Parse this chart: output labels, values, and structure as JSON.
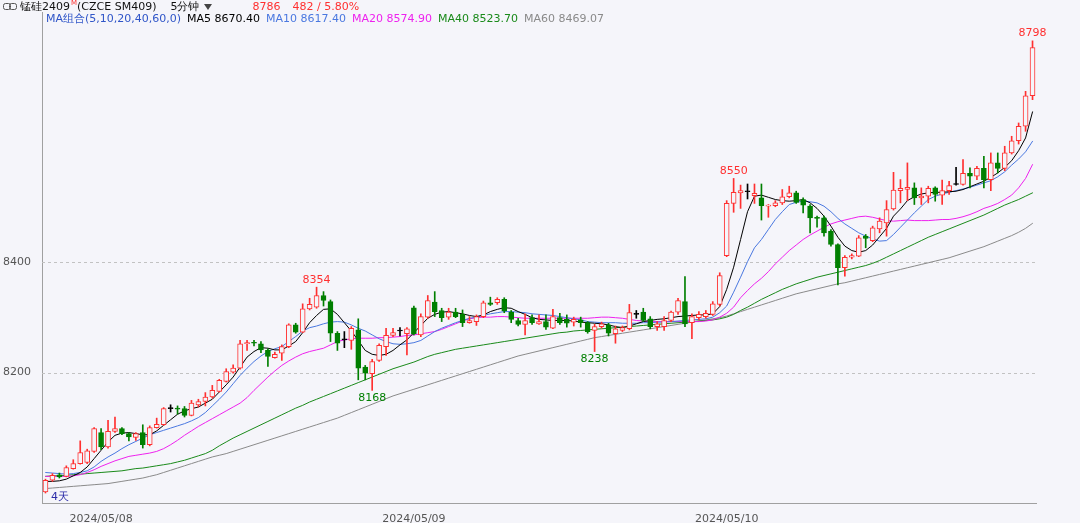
{
  "chart_data": {
    "type": "candlestick",
    "title": "锰硅2409$^{M}$(CZCE SM409)",
    "subtitle": "5分钟",
    "legend_title": "MA组合(5,10,20,40,60,0)",
    "categories": [
      null,
      null,
      null,
      null,
      null,
      null,
      null,
      null,
      "2024/05/08",
      null,
      null,
      null,
      null,
      null,
      null,
      null,
      null,
      null,
      null,
      null,
      null,
      null,
      null,
      null,
      null,
      null,
      null,
      null,
      null,
      null,
      null,
      null,
      null,
      null,
      null,
      null,
      null,
      null,
      null,
      null,
      null,
      null,
      null,
      null,
      null,
      null,
      null,
      null,
      null,
      null,
      null,
      null,
      null,
      "2024/05/09",
      null,
      null,
      null,
      null,
      null,
      null,
      null,
      null,
      null,
      null,
      null,
      null,
      null,
      null,
      null,
      null,
      null,
      null,
      null,
      null,
      null,
      null,
      null,
      null,
      null,
      null,
      null,
      null,
      null,
      null,
      null,
      null,
      null,
      null,
      null,
      null,
      null,
      null,
      null,
      null,
      null,
      null,
      null,
      null,
      "2024/05/10",
      null,
      null,
      null,
      null,
      null,
      null,
      null,
      null,
      null,
      null,
      null,
      null,
      null,
      null,
      null,
      null,
      null,
      null,
      null,
      null,
      null,
      null,
      null,
      null,
      null,
      null,
      null,
      null,
      null,
      null,
      null,
      null,
      null,
      null,
      null,
      null,
      null,
      null,
      null,
      null,
      null,
      null,
      null,
      null
    ],
    "ohlc": [
      [
        7985,
        8008,
        7983,
        8006
      ],
      [
        8006,
        8018,
        8004,
        8015
      ],
      [
        8016,
        8019,
        8010,
        8012
      ],
      [
        8013,
        8032,
        8012,
        8029
      ],
      [
        8027,
        8043,
        8026,
        8036
      ],
      [
        8036,
        8077,
        8035,
        8056
      ],
      [
        8038,
        8062,
        8036,
        8059
      ],
      [
        8058,
        8101,
        8056,
        8099
      ],
      [
        8092,
        8099,
        8061,
        8066
      ],
      [
        8066,
        8114,
        8064,
        8094
      ],
      [
        8094,
        8120,
        8092,
        8099
      ],
      [
        8099,
        8101,
        8088,
        8090
      ],
      [
        8090,
        8092,
        8077,
        8084
      ],
      [
        8083,
        8092,
        8078,
        8090
      ],
      [
        8092,
        8106,
        8064,
        8070
      ],
      [
        8070,
        8104,
        8068,
        8101
      ],
      [
        8101,
        8118,
        8100,
        8107
      ],
      [
        8106,
        8137,
        8105,
        8135
      ],
      [
        8135,
        8142,
        8129,
        8135
      ],
      [
        8136,
        8140,
        8125,
        8134
      ],
      [
        8135,
        8139,
        8120,
        8123
      ],
      [
        8123,
        8150,
        8122,
        8145
      ],
      [
        8142,
        8152,
        8138,
        8148
      ],
      [
        8148,
        8164,
        8140,
        8156
      ],
      [
        8156,
        8177,
        8154,
        8168
      ],
      [
        8166,
        8188,
        8165,
        8186
      ],
      [
        8184,
        8207,
        8183,
        8202
      ],
      [
        8201,
        8214,
        8199,
        8208
      ],
      [
        8208,
        8258,
        8206,
        8252
      ],
      [
        8252,
        8258,
        8240,
        8254
      ],
      [
        8254,
        8258,
        8248,
        8253
      ],
      [
        8252,
        8256,
        8236,
        8241
      ],
      [
        8240,
        8243,
        8211,
        8229
      ],
      [
        8227,
        8237,
        8226,
        8233
      ],
      [
        8235,
        8250,
        8222,
        8247
      ],
      [
        8247,
        8288,
        8245,
        8286
      ],
      [
        8286,
        8289,
        8271,
        8273
      ],
      [
        8273,
        8324,
        8272,
        8315
      ],
      [
        8315,
        8334,
        8313,
        8323
      ],
      [
        8318,
        8354,
        8316,
        8339
      ],
      [
        8339,
        8346,
        8320,
        8330
      ],
      [
        8328,
        8331,
        8256,
        8271
      ],
      [
        8271,
        8274,
        8240,
        8253
      ],
      [
        8259,
        8274,
        8245,
        8259
      ],
      [
        8258,
        8283,
        8242,
        8280
      ],
      [
        8277,
        8297,
        8187,
        8208
      ],
      [
        8210,
        8213,
        8187,
        8199
      ],
      [
        8198,
        8224,
        8168,
        8220
      ],
      [
        8222,
        8252,
        8220,
        8249
      ],
      [
        8247,
        8280,
        8231,
        8267
      ],
      [
        8267,
        8280,
        8265,
        8272
      ],
      [
        8275,
        8281,
        8266,
        8275
      ],
      [
        8270,
        8281,
        8232,
        8279
      ],
      [
        8317,
        8320,
        8268,
        8270
      ],
      [
        8268,
        8306,
        8265,
        8301
      ],
      [
        8300,
        8339,
        8298,
        8330
      ],
      [
        8327,
        8346,
        8301,
        8310
      ],
      [
        8312,
        8316,
        8292,
        8299
      ],
      [
        8300,
        8316,
        8296,
        8309
      ],
      [
        8309,
        8316,
        8299,
        8301
      ],
      [
        8305,
        8313,
        8283,
        8290
      ],
      [
        8290,
        8301,
        8289,
        8294
      ],
      [
        8292,
        8304,
        8285,
        8301
      ],
      [
        8301,
        8329,
        8299,
        8326
      ],
      [
        8326,
        8336,
        8321,
        8323
      ],
      [
        8326,
        8335,
        8323,
        8332
      ],
      [
        8332,
        8335,
        8308,
        8311
      ],
      [
        8309,
        8312,
        8290,
        8296
      ],
      [
        8294,
        8298,
        8284,
        8287
      ],
      [
        8287,
        8306,
        8268,
        8294
      ],
      [
        8299,
        8304,
        8287,
        8290
      ],
      [
        8288,
        8304,
        8287,
        8292
      ],
      [
        8292,
        8304,
        8278,
        8282
      ],
      [
        8280,
        8314,
        8279,
        8301
      ],
      [
        8299,
        8307,
        8287,
        8290
      ],
      [
        8296,
        8304,
        8282,
        8289
      ],
      [
        8291,
        8300,
        8284,
        8296
      ],
      [
        8295,
        8300,
        8282,
        8290
      ],
      [
        8290,
        8292,
        8271,
        8274
      ],
      [
        8276,
        8287,
        8238,
        8283
      ],
      [
        8283,
        8291,
        8280,
        8288
      ],
      [
        8286,
        8289,
        8266,
        8271
      ],
      [
        8270,
        8284,
        8253,
        8279
      ],
      [
        8276,
        8284,
        8274,
        8281
      ],
      [
        8279,
        8323,
        8277,
        8308
      ],
      [
        8305,
        8312,
        8298,
        8305
      ],
      [
        8309,
        8316,
        8292,
        8294
      ],
      [
        8297,
        8301,
        8279,
        8283
      ],
      [
        8283,
        8292,
        8276,
        8288
      ],
      [
        8283,
        8301,
        8276,
        8294
      ],
      [
        8294,
        8311,
        8292,
        8309
      ],
      [
        8309,
        8334,
        8305,
        8330
      ],
      [
        8328,
        8373,
        8283,
        8288
      ],
      [
        8290,
        8306,
        8261,
        8301
      ],
      [
        8299,
        8310,
        8295,
        8305
      ],
      [
        8301,
        8312,
        8298,
        8307
      ],
      [
        8305,
        8328,
        8303,
        8324
      ],
      [
        8323,
        8380,
        8320,
        8375
      ],
      [
        8411,
        8510,
        8409,
        8505
      ],
      [
        8505,
        8550,
        8489,
        8525
      ],
      [
        8524,
        8538,
        8496,
        8528
      ],
      [
        8526,
        8540,
        8513,
        8526
      ],
      [
        8519,
        8540,
        8505,
        8523
      ],
      [
        8515,
        8540,
        8475,
        8501
      ],
      [
        8500,
        8503,
        8480,
        8502
      ],
      [
        8501,
        8510,
        8499,
        8506
      ],
      [
        8506,
        8530,
        8503,
        8517
      ],
      [
        8517,
        8536,
        8515,
        8524
      ],
      [
        8524,
        8527,
        8505,
        8507
      ],
      [
        8512,
        8515,
        8488,
        8502
      ],
      [
        8500,
        8503,
        8452,
        8479
      ],
      [
        8480,
        8482,
        8462,
        8478
      ],
      [
        8479,
        8482,
        8446,
        8452
      ],
      [
        8455,
        8458,
        8428,
        8431
      ],
      [
        8431,
        8432,
        8358,
        8389
      ],
      [
        8389,
        8411,
        8374,
        8408
      ],
      [
        8408,
        8414,
        8405,
        8411
      ],
      [
        8410,
        8447,
        8409,
        8443
      ],
      [
        8446,
        8449,
        8425,
        8442
      ],
      [
        8438,
        8464,
        8436,
        8461
      ],
      [
        8459,
        8479,
        8452,
        8473
      ],
      [
        8470,
        8510,
        8446,
        8494
      ],
      [
        8495,
        8561,
        8493,
        8529
      ],
      [
        8528,
        8548,
        8506,
        8532
      ],
      [
        8530,
        8578,
        8510,
        8534
      ],
      [
        8533,
        8542,
        8503,
        8515
      ],
      [
        8515,
        8533,
        8503,
        8518
      ],
      [
        8518,
        8536,
        8506,
        8532
      ],
      [
        8533,
        8535,
        8509,
        8521
      ],
      [
        8520,
        8547,
        8503,
        8528
      ],
      [
        8528,
        8545,
        8521,
        8537
      ],
      [
        8539,
        8570,
        8538,
        8539
      ],
      [
        8539,
        8584,
        8538,
        8559
      ],
      [
        8559,
        8569,
        8533,
        8554
      ],
      [
        8554,
        8572,
        8548,
        8568
      ],
      [
        8568,
        8590,
        8533,
        8548
      ],
      [
        8548,
        8596,
        8528,
        8578
      ],
      [
        8578,
        8596,
        8560,
        8568
      ],
      [
        8568,
        8608,
        8564,
        8596
      ],
      [
        8596,
        8626,
        8594,
        8618
      ],
      [
        8618,
        8650,
        8612,
        8644
      ],
      [
        8644,
        8707,
        8635,
        8699
      ],
      [
        8699,
        8798,
        8692,
        8786
      ]
    ],
    "series": [
      {
        "name": "MA5 8670.40",
        "type": "line",
        "color": "#000000",
        "values": [
          8004,
          8004,
          8005,
          8008,
          8014,
          8020,
          8030,
          8045,
          8060,
          8075,
          8087,
          8091,
          8092,
          8090,
          8088,
          8088,
          8095,
          8105,
          8115,
          8125,
          8131,
          8135,
          8138,
          8145,
          8152,
          8165,
          8178,
          8192,
          8210,
          8228,
          8238,
          8245,
          8244,
          8241,
          8241,
          8248,
          8256,
          8272,
          8290,
          8303,
          8314,
          8315,
          8305,
          8290,
          8275,
          8258,
          8240,
          8233,
          8231,
          8233,
          8240,
          8250,
          8259,
          8272,
          8285,
          8298,
          8305,
          8309,
          8310,
          8308,
          8306,
          8303,
          8301,
          8304,
          8310,
          8314,
          8317,
          8316,
          8310,
          8305,
          8299,
          8296,
          8295,
          8294,
          8294,
          8294,
          8293,
          8291,
          8290,
          8289,
          8288,
          8286,
          8283,
          8281,
          8284,
          8288,
          8292,
          8294,
          8296,
          8297,
          8299,
          8301,
          8302,
          8303,
          8304,
          8304,
          8306,
          8319,
          8350,
          8390,
          8440,
          8490,
          8518,
          8520,
          8516,
          8512,
          8510,
          8509,
          8510,
          8512,
          8506,
          8496,
          8482,
          8464,
          8444,
          8428,
          8420,
          8417,
          8420,
          8430,
          8445,
          8460,
          8482,
          8495,
          8510,
          8517,
          8522,
          8524,
          8525,
          8525,
          8526,
          8527,
          8530,
          8535,
          8540,
          8545,
          8552,
          8560,
          8570,
          8582,
          8600,
          8623,
          8670
        ]
      },
      {
        "name": "MA10 8617.40",
        "type": "line",
        "color": "#4a78e0",
        "values": [
          8020,
          8019,
          8018,
          8017,
          8018,
          8020,
          8023,
          8030,
          8040,
          8048,
          8055,
          8063,
          8070,
          8076,
          8082,
          8088,
          8092,
          8096,
          8100,
          8104,
          8108,
          8113,
          8119,
          8128,
          8140,
          8152,
          8165,
          8180,
          8195,
          8208,
          8220,
          8230,
          8238,
          8243,
          8247,
          8256,
          8265,
          8275,
          8281,
          8284,
          8288,
          8291,
          8292,
          8291,
          8286,
          8280,
          8275,
          8268,
          8261,
          8256,
          8252,
          8251,
          8252,
          8254,
          8258,
          8266,
          8274,
          8280,
          8285,
          8290,
          8294,
          8298,
          8300,
          8303,
          8306,
          8308,
          8310,
          8310,
          8309,
          8308,
          8306,
          8305,
          8304,
          8303,
          8301,
          8299,
          8297,
          8295,
          8292,
          8291,
          8290,
          8290,
          8290,
          8289,
          8289,
          8289,
          8290,
          8290,
          8291,
          8291,
          8292,
          8293,
          8294,
          8295,
          8296,
          8297,
          8300,
          8308,
          8320,
          8345,
          8372,
          8400,
          8425,
          8440,
          8458,
          8476,
          8490,
          8503,
          8507,
          8509,
          8508,
          8506,
          8500,
          8490,
          8478,
          8468,
          8460,
          8452,
          8446,
          8441,
          8437,
          8438,
          8449,
          8462,
          8475,
          8488,
          8500,
          8512,
          8518,
          8522,
          8525,
          8528,
          8531,
          8534,
          8538,
          8542,
          8546,
          8553,
          8562,
          8574,
          8585,
          8598,
          8617
        ]
      },
      {
        "name": "MA20 8574.90",
        "type": "line",
        "color": "#ee22ee",
        "values": [
          8013,
          8013,
          8013,
          8013,
          8014,
          8016,
          8020,
          8025,
          8031,
          8036,
          8041,
          8045,
          8049,
          8051,
          8053,
          8055,
          8058,
          8063,
          8070,
          8078,
          8087,
          8095,
          8103,
          8110,
          8117,
          8124,
          8131,
          8138,
          8145,
          8155,
          8168,
          8180,
          8192,
          8203,
          8213,
          8221,
          8228,
          8234,
          8238,
          8241,
          8244,
          8250,
          8256,
          8259,
          8261,
          8262,
          8262,
          8262,
          8263,
          8263,
          8264,
          8265,
          8267,
          8268,
          8270,
          8272,
          8274,
          8278,
          8283,
          8288,
          8293,
          8297,
          8299,
          8300,
          8300,
          8301,
          8301,
          8300,
          8299,
          8298,
          8298,
          8298,
          8298,
          8298,
          8298,
          8298,
          8298,
          8298,
          8298,
          8299,
          8300,
          8300,
          8299,
          8298,
          8296,
          8294,
          8293,
          8292,
          8292,
          8292,
          8292,
          8292,
          8292,
          8292,
          8292,
          8293,
          8295,
          8300,
          8307,
          8318,
          8335,
          8348,
          8360,
          8370,
          8382,
          8396,
          8408,
          8420,
          8430,
          8440,
          8448,
          8455,
          8462,
          8468,
          8472,
          8475,
          8478,
          8481,
          8482,
          8480,
          8477,
          8474,
          8473,
          8474,
          8475,
          8474,
          8474,
          8474,
          8475,
          8476,
          8476,
          8478,
          8481,
          8485,
          8490,
          8496,
          8500,
          8505,
          8512,
          8520,
          8533,
          8550,
          8575
        ]
      },
      {
        "name": "MA40 8523.70",
        "type": "line",
        "color": "#1a8a1a",
        "values": [
          8013,
          8014,
          8014,
          8015,
          8016,
          8017,
          8018,
          8019,
          8020,
          8021,
          8022,
          8023,
          8025,
          8027,
          8028,
          8030,
          8032,
          8034,
          8036,
          8039,
          8042,
          8046,
          8050,
          8054,
          8060,
          8068,
          8075,
          8082,
          8088,
          8094,
          8100,
          8106,
          8112,
          8118,
          8124,
          8130,
          8136,
          8141,
          8147,
          8152,
          8157,
          8162,
          8167,
          8172,
          8177,
          8182,
          8187,
          8192,
          8197,
          8202,
          8207,
          8211,
          8215,
          8219,
          8224,
          8229,
          8233,
          8236,
          8239,
          8242,
          8244,
          8246,
          8248,
          8250,
          8252,
          8254,
          8256,
          8258,
          8260,
          8262,
          8264,
          8266,
          8268,
          8270,
          8272,
          8273,
          8275,
          8276,
          8277,
          8278,
          8279,
          8280,
          8281,
          8282,
          8283,
          8284,
          8285,
          8286,
          8287,
          8288,
          8289,
          8290,
          8291,
          8292,
          8293,
          8294,
          8295,
          8297,
          8300,
          8305,
          8312,
          8318,
          8325,
          8332,
          8338,
          8344,
          8350,
          8355,
          8360,
          8364,
          8368,
          8372,
          8375,
          8378,
          8381,
          8384,
          8387,
          8390,
          8393,
          8397,
          8402,
          8408,
          8414,
          8420,
          8426,
          8432,
          8438,
          8444,
          8449,
          8454,
          8459,
          8464,
          8469,
          8474,
          8479,
          8484,
          8490,
          8496,
          8502,
          8507,
          8512,
          8518,
          8524
        ]
      },
      {
        "name": "MA60 8469.07",
        "type": "line",
        "color": "#8a8a8a",
        "values": [
          7991,
          7992,
          7993,
          7994,
          7995,
          7996,
          7997,
          7998,
          7999,
          8000,
          8002,
          8004,
          8006,
          8008,
          8010,
          8013,
          8016,
          8020,
          8024,
          8028,
          8032,
          8036,
          8040,
          8044,
          8048,
          8051,
          8054,
          8058,
          8062,
          8066,
          8070,
          8074,
          8078,
          8082,
          8086,
          8090,
          8094,
          8098,
          8102,
          8106,
          8110,
          8114,
          8118,
          8123,
          8128,
          8133,
          8138,
          8143,
          8148,
          8153,
          8158,
          8162,
          8166,
          8170,
          8174,
          8178,
          8182,
          8186,
          8190,
          8194,
          8198,
          8202,
          8206,
          8210,
          8214,
          8218,
          8222,
          8226,
          8230,
          8233,
          8236,
          8239,
          8242,
          8245,
          8248,
          8251,
          8254,
          8257,
          8260,
          8263,
          8265,
          8267,
          8269,
          8271,
          8273,
          8275,
          8277,
          8279,
          8281,
          8283,
          8285,
          8287,
          8289,
          8291,
          8293,
          8295,
          8297,
          8299,
          8302,
          8306,
          8310,
          8314,
          8318,
          8322,
          8326,
          8330,
          8334,
          8338,
          8342,
          8345,
          8348,
          8351,
          8354,
          8357,
          8360,
          8362,
          8365,
          8368,
          8371,
          8374,
          8377,
          8380,
          8383,
          8386,
          8389,
          8392,
          8395,
          8398,
          8401,
          8404,
          8407,
          8411,
          8415,
          8419,
          8423,
          8427,
          8432,
          8437,
          8442,
          8447,
          8453,
          8460,
          8469
        ]
      }
    ],
    "ylim": [
      7965,
      8850
    ],
    "yticks": [
      8200,
      8400
    ],
    "grid": "y",
    "legend": "top left",
    "annotations": [
      "8786",
      "482 / 5.80%",
      "4天",
      {
        "text": "8354",
        "y": 8354
      },
      {
        "text": "8168",
        "y": 8168
      },
      {
        "text": "8238",
        "y": 8238
      },
      {
        "text": "8550",
        "y": 8550
      },
      {
        "text": "8798",
        "y": 8798
      }
    ]
  }
}
